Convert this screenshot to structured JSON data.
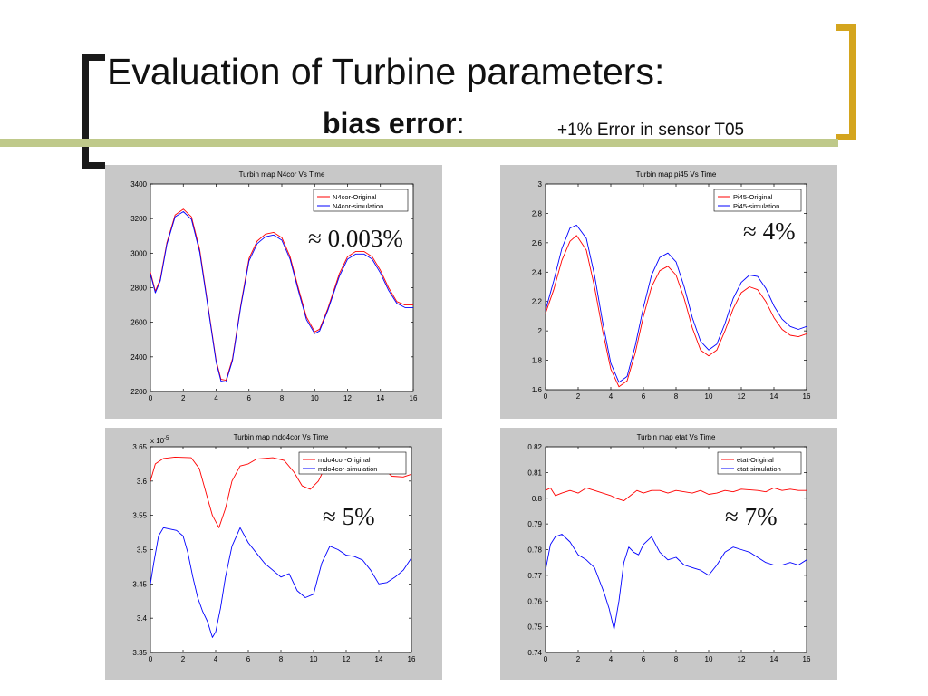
{
  "slide": {
    "title": "Evaluation of Turbine parameters:",
    "subtitle_bold": "bias error",
    "subtitle_colon": ":",
    "subtitle_note": "+1% Error in sensor T05"
  },
  "colors": {
    "original": "#ff0000",
    "simulation": "#0000ff",
    "panel_bg": "#c8c8c8",
    "bracket_right": "#d4a51e",
    "rule": "#bfc98a"
  },
  "chart_data": [
    {
      "type": "line",
      "title": "Turbin map N4cor Vs Time",
      "xlim": [
        0,
        16
      ],
      "ylim": [
        2200,
        3400
      ],
      "xticks": [
        0,
        2,
        4,
        6,
        8,
        10,
        12,
        14,
        16
      ],
      "yticks": [
        2200,
        2400,
        2600,
        2800,
        3000,
        3200,
        3400
      ],
      "legend": "top-right",
      "annotation": "≈ 0.003%",
      "series": [
        {
          "name": "N4cor-Original",
          "x": [
            0,
            0.3,
            0.6,
            1,
            1.5,
            2,
            2.5,
            3,
            3.5,
            4,
            4.3,
            4.6,
            5,
            5.5,
            6,
            6.5,
            7,
            7.5,
            8,
            8.5,
            9,
            9.5,
            10,
            10.3,
            10.8,
            11.5,
            12,
            12.5,
            13,
            13.5,
            14,
            14.5,
            15,
            15.5,
            16
          ],
          "y": [
            2890,
            2780,
            2850,
            3060,
            3220,
            3255,
            3210,
            3020,
            2700,
            2380,
            2270,
            2265,
            2390,
            2700,
            2970,
            3070,
            3110,
            3120,
            3090,
            2980,
            2800,
            2630,
            2545,
            2560,
            2680,
            2880,
            2980,
            3010,
            3010,
            2980,
            2900,
            2800,
            2720,
            2700,
            2700
          ]
        },
        {
          "name": "N4cor-simulation",
          "x": [
            0,
            0.3,
            0.6,
            1,
            1.5,
            2,
            2.5,
            3,
            3.5,
            4,
            4.3,
            4.6,
            5,
            5.5,
            6,
            6.5,
            7,
            7.5,
            8,
            8.5,
            9,
            9.5,
            10,
            10.3,
            10.8,
            11.5,
            12,
            12.5,
            13,
            13.5,
            14,
            14.5,
            15,
            15.5,
            16
          ],
          "y": [
            2880,
            2770,
            2840,
            3050,
            3210,
            3240,
            3195,
            3005,
            2690,
            2370,
            2260,
            2255,
            2380,
            2690,
            2955,
            3055,
            3095,
            3105,
            3075,
            2965,
            2785,
            2615,
            2535,
            2550,
            2670,
            2865,
            2965,
            2995,
            2995,
            2965,
            2885,
            2785,
            2710,
            2685,
            2685
          ]
        }
      ]
    },
    {
      "type": "line",
      "title": "Turbin map pi45 Vs Time",
      "xlim": [
        0,
        16
      ],
      "ylim": [
        1.6,
        3
      ],
      "xticks": [
        0,
        2,
        4,
        6,
        8,
        10,
        12,
        14,
        16
      ],
      "yticks": [
        1.6,
        1.8,
        2,
        2.2,
        2.4,
        2.6,
        2.8,
        3
      ],
      "legend": "top-right",
      "annotation": "≈ 4%",
      "series": [
        {
          "name": "Pi45-Original",
          "x": [
            0,
            0.5,
            1,
            1.5,
            1.9,
            2.5,
            3,
            3.5,
            4,
            4.5,
            5,
            5.5,
            6,
            6.5,
            7,
            7.5,
            8,
            8.5,
            9,
            9.5,
            10,
            10.5,
            11,
            11.5,
            12,
            12.5,
            13,
            13.5,
            14,
            14.5,
            15,
            15.5,
            16
          ],
          "y": [
            2.12,
            2.28,
            2.48,
            2.61,
            2.65,
            2.55,
            2.3,
            2.0,
            1.74,
            1.62,
            1.66,
            1.85,
            2.1,
            2.3,
            2.41,
            2.44,
            2.38,
            2.22,
            2.02,
            1.87,
            1.83,
            1.87,
            2.0,
            2.15,
            2.26,
            2.3,
            2.28,
            2.2,
            2.09,
            2.01,
            1.97,
            1.96,
            1.98
          ]
        },
        {
          "name": "Pi45-simulation",
          "x": [
            0,
            0.5,
            1,
            1.5,
            1.9,
            2.5,
            3,
            3.5,
            4,
            4.5,
            5,
            5.5,
            6,
            6.5,
            7,
            7.5,
            8,
            8.5,
            9,
            9.5,
            10,
            10.5,
            11,
            11.5,
            12,
            12.5,
            13,
            13.5,
            14,
            14.5,
            15,
            15.5,
            16
          ],
          "y": [
            2.14,
            2.34,
            2.56,
            2.7,
            2.72,
            2.63,
            2.38,
            2.06,
            1.78,
            1.65,
            1.69,
            1.9,
            2.16,
            2.38,
            2.5,
            2.53,
            2.47,
            2.3,
            2.09,
            1.93,
            1.87,
            1.91,
            2.05,
            2.22,
            2.33,
            2.38,
            2.37,
            2.29,
            2.17,
            2.08,
            2.03,
            2.01,
            2.03
          ]
        }
      ]
    },
    {
      "type": "line",
      "title": "Turbin map mdo4cor Vs Time",
      "exponent_label": "x 10",
      "exponent_power": "-5",
      "xlim": [
        0,
        16
      ],
      "ylim": [
        3.35,
        3.65
      ],
      "xticks": [
        0,
        2,
        4,
        6,
        8,
        10,
        12,
        14,
        16
      ],
      "yticks": [
        3.35,
        3.4,
        3.45,
        3.5,
        3.55,
        3.6,
        3.65
      ],
      "legend": "top-right",
      "annotation": "≈ 5%",
      "series": [
        {
          "name": "mdo4cor-Original",
          "x": [
            0,
            0.3,
            0.8,
            1.5,
            2.5,
            3,
            3.5,
            3.8,
            4.2,
            4.6,
            5,
            5.5,
            6,
            6.5,
            7.5,
            8.2,
            8.8,
            9.3,
            9.8,
            10.3,
            10.8,
            11.5,
            12.5,
            13.5,
            14.2,
            14.8,
            15.5,
            16
          ],
          "y": [
            3.6,
            3.625,
            3.633,
            3.635,
            3.634,
            3.618,
            3.575,
            3.55,
            3.532,
            3.56,
            3.6,
            3.622,
            3.625,
            3.632,
            3.634,
            3.63,
            3.613,
            3.593,
            3.588,
            3.6,
            3.625,
            3.63,
            3.632,
            3.63,
            3.62,
            3.607,
            3.606,
            3.61
          ]
        },
        {
          "name": "mdo4cor-simulation",
          "x": [
            0,
            0.2,
            0.5,
            0.8,
            1.2,
            1.6,
            2,
            2.3,
            2.6,
            2.9,
            3.2,
            3.5,
            3.8,
            4,
            4.3,
            4.6,
            5,
            5.5,
            6,
            6.5,
            7,
            7.5,
            8,
            8.5,
            9,
            9.5,
            10,
            10.5,
            11,
            11.5,
            12,
            12.5,
            13,
            13.5,
            14,
            14.5,
            15,
            15.5,
            16
          ],
          "y": [
            3.45,
            3.48,
            3.52,
            3.532,
            3.53,
            3.528,
            3.52,
            3.495,
            3.46,
            3.43,
            3.41,
            3.395,
            3.372,
            3.38,
            3.415,
            3.46,
            3.505,
            3.532,
            3.51,
            3.495,
            3.48,
            3.47,
            3.46,
            3.465,
            3.44,
            3.43,
            3.435,
            3.48,
            3.505,
            3.5,
            3.492,
            3.49,
            3.485,
            3.47,
            3.45,
            3.452,
            3.46,
            3.47,
            3.488
          ]
        }
      ]
    },
    {
      "type": "line",
      "title": "Turbin map etat Vs Time",
      "xlim": [
        0,
        16
      ],
      "ylim": [
        0.74,
        0.82
      ],
      "xticks": [
        0,
        2,
        4,
        6,
        8,
        10,
        12,
        14,
        16
      ],
      "yticks": [
        0.74,
        0.75,
        0.76,
        0.77,
        0.78,
        0.79,
        0.8,
        0.81,
        0.82
      ],
      "legend": "top-right",
      "annotation": "≈ 7%",
      "series": [
        {
          "name": "etat-Original",
          "x": [
            0,
            0.3,
            0.6,
            1,
            1.5,
            2,
            2.5,
            3,
            3.5,
            4,
            4.3,
            4.8,
            5.2,
            5.6,
            6,
            6.5,
            7,
            7.5,
            8,
            9,
            9.5,
            10,
            10.5,
            11,
            11.5,
            12,
            13,
            13.5,
            14,
            14.5,
            15,
            15.5,
            16
          ],
          "y": [
            0.803,
            0.804,
            0.801,
            0.802,
            0.803,
            0.802,
            0.804,
            0.803,
            0.802,
            0.801,
            0.8,
            0.799,
            0.801,
            0.803,
            0.802,
            0.803,
            0.803,
            0.802,
            0.803,
            0.802,
            0.803,
            0.8015,
            0.802,
            0.803,
            0.8025,
            0.8035,
            0.803,
            0.8025,
            0.804,
            0.803,
            0.8035,
            0.803,
            0.803
          ]
        },
        {
          "name": "etat-simulation",
          "x": [
            0,
            0.3,
            0.6,
            1,
            1.5,
            2,
            2.5,
            3,
            3.3,
            3.6,
            3.9,
            4.2,
            4.5,
            4.8,
            5.1,
            5.4,
            5.7,
            6,
            6.5,
            7,
            7.5,
            8,
            8.5,
            9,
            9.5,
            10,
            10.5,
            11,
            11.5,
            12,
            12.5,
            13,
            13.5,
            14,
            14.5,
            15,
            15.5,
            16
          ],
          "y": [
            0.772,
            0.782,
            0.785,
            0.786,
            0.783,
            0.778,
            0.776,
            0.773,
            0.768,
            0.763,
            0.757,
            0.749,
            0.76,
            0.775,
            0.781,
            0.779,
            0.778,
            0.782,
            0.785,
            0.779,
            0.776,
            0.777,
            0.774,
            0.773,
            0.772,
            0.77,
            0.774,
            0.779,
            0.781,
            0.78,
            0.779,
            0.777,
            0.775,
            0.774,
            0.774,
            0.775,
            0.774,
            0.776
          ]
        }
      ]
    }
  ]
}
